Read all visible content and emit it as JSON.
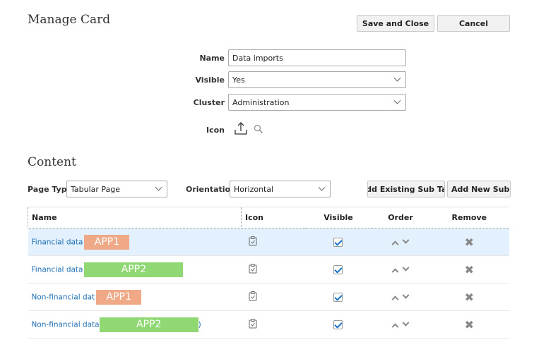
{
  "header": {
    "title": "Manage Card",
    "save_close": "Save and Close",
    "cancel": "Cancel"
  },
  "form": {
    "name_label": "Name",
    "name_value": "Data imports",
    "visible_label": "Visible",
    "visible_value": "Yes",
    "cluster_label": "Cluster",
    "cluster_value": "Administration",
    "icon_label": "Icon"
  },
  "content": {
    "title": "Content",
    "page_type_label": "Page Type",
    "page_type_value": "Tabular Page",
    "orientation_label": "Orientation",
    "orientation_value": "Horizontal",
    "add_existing": "Add Existing Sub Tab",
    "add_new": "Add New Sub Tab"
  },
  "table": {
    "columns": [
      "Name",
      "Icon",
      "Visible",
      "Order",
      "Remove"
    ],
    "rows": [
      {
        "name": "Financial data",
        "tag": "APP1",
        "tag_color": "#f0a987",
        "visible": true,
        "selected": true
      },
      {
        "name": "Financial data",
        "tag": "APP2",
        "tag_color": "#8fd874",
        "visible": true
      },
      {
        "name": "Non-financial dat",
        "tag": "APP1",
        "tag_color": "#f0a987",
        "visible": true
      },
      {
        "name": "Non-financial data",
        "tag": "APP2",
        "tag_color": "#8fd874",
        "suffix": ")",
        "visible": true
      }
    ]
  }
}
